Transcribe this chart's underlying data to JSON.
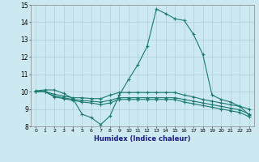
{
  "xlabel": "Humidex (Indice chaleur)",
  "background_color": "#cce8f0",
  "line_color": "#1a7a6e",
  "xlim": [
    -0.5,
    23.5
  ],
  "ylim": [
    8,
    15
  ],
  "xticks": [
    0,
    1,
    2,
    3,
    4,
    5,
    6,
    7,
    8,
    9,
    10,
    11,
    12,
    13,
    14,
    15,
    16,
    17,
    18,
    19,
    20,
    21,
    22,
    23
  ],
  "yticks": [
    8,
    9,
    10,
    11,
    12,
    13,
    14,
    15
  ],
  "grid_color": "#b0cfd8",
  "series": [
    {
      "x": [
        0,
        1,
        2,
        3,
        4,
        5,
        6,
        7,
        8,
        9,
        10,
        11,
        12,
        13,
        14,
        15,
        16,
        17,
        18,
        19,
        20,
        21,
        22,
        23
      ],
      "y": [
        10.05,
        10.1,
        10.1,
        9.9,
        9.6,
        8.7,
        8.5,
        8.1,
        8.6,
        9.8,
        10.7,
        11.55,
        12.6,
        14.75,
        14.5,
        14.2,
        14.1,
        13.3,
        12.15,
        9.8,
        9.55,
        9.4,
        9.15,
        8.65
      ]
    },
    {
      "x": [
        0,
        1,
        2,
        3,
        4,
        5,
        6,
        7,
        8,
        9,
        10,
        11,
        12,
        13,
        14,
        15,
        16,
        17,
        18,
        19,
        20,
        21,
        22,
        23
      ],
      "y": [
        10.0,
        10.0,
        9.85,
        9.75,
        9.65,
        9.65,
        9.6,
        9.6,
        9.8,
        9.95,
        9.95,
        9.95,
        9.95,
        9.95,
        9.95,
        9.95,
        9.8,
        9.7,
        9.55,
        9.45,
        9.35,
        9.25,
        9.15,
        9.0
      ]
    },
    {
      "x": [
        0,
        1,
        2,
        3,
        4,
        5,
        6,
        7,
        8,
        9,
        10,
        11,
        12,
        13,
        14,
        15,
        16,
        17,
        18,
        19,
        20,
        21,
        22,
        23
      ],
      "y": [
        10.0,
        10.0,
        9.75,
        9.65,
        9.55,
        9.5,
        9.45,
        9.4,
        9.5,
        9.65,
        9.65,
        9.65,
        9.65,
        9.65,
        9.65,
        9.65,
        9.55,
        9.45,
        9.35,
        9.25,
        9.15,
        9.05,
        8.95,
        8.7
      ]
    },
    {
      "x": [
        0,
        1,
        2,
        3,
        4,
        5,
        6,
        7,
        8,
        9,
        10,
        11,
        12,
        13,
        14,
        15,
        16,
        17,
        18,
        19,
        20,
        21,
        22,
        23
      ],
      "y": [
        10.0,
        10.0,
        9.7,
        9.6,
        9.5,
        9.4,
        9.35,
        9.25,
        9.35,
        9.55,
        9.55,
        9.55,
        9.55,
        9.55,
        9.55,
        9.55,
        9.4,
        9.3,
        9.2,
        9.1,
        9.0,
        8.9,
        8.8,
        8.55
      ]
    }
  ]
}
